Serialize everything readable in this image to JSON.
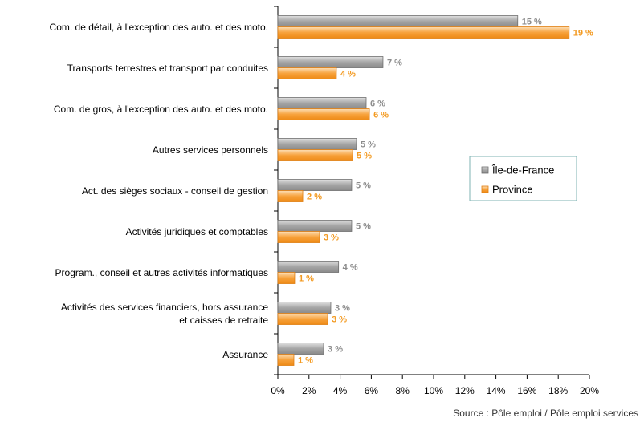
{
  "chart_data": {
    "type": "bar",
    "orientation": "horizontal",
    "categories": [
      "Com. de détail, à l'exception des auto. et des moto.",
      "Transports terrestres et transport par conduites",
      "Com. de gros, à l'exception des auto. et des moto.",
      "Autres services personnels",
      "Act. des sièges sociaux -  conseil de gestion",
      "Activités juridiques et comptables",
      "Program., conseil et autres activités informatiques",
      "Activités des services financiers, hors assurance\net caisses de retraite",
      "Assurance"
    ],
    "series": [
      {
        "name": "Île-de-France",
        "color": "#a6a6a6",
        "values": [
          15.4,
          6.75,
          5.67,
          5.05,
          4.74,
          4.74,
          3.9,
          3.4,
          2.94
        ],
        "value_labels": [
          "15 %",
          "7 %",
          "6 %",
          "5 %",
          "5 %",
          "5 %",
          "4 %",
          "3 %",
          "3 %"
        ],
        "label_color": "#8c8c8c"
      },
      {
        "name": "Province",
        "color": "#f7a23c",
        "values": [
          18.7,
          3.76,
          5.88,
          4.8,
          1.6,
          2.68,
          1.08,
          3.2,
          1.03
        ],
        "value_labels": [
          "19 %",
          "4 %",
          "6 %",
          "5 %",
          "2 %",
          "3 %",
          "1 %",
          "3 %",
          "1 %"
        ],
        "label_color": "#f39a21"
      }
    ],
    "xlim": [
      0,
      20
    ],
    "xticks": [
      {
        "value": 0,
        "label": "0%"
      },
      {
        "value": 2,
        "label": "2%"
      },
      {
        "value": 4,
        "label": "4%"
      },
      {
        "value": 6,
        "label": "6%"
      },
      {
        "value": 8,
        "label": "8%"
      },
      {
        "value": 10,
        "label": "10%"
      },
      {
        "value": 12,
        "label": "12%"
      },
      {
        "value": 14,
        "label": "14%"
      },
      {
        "value": 16,
        "label": "16%"
      },
      {
        "value": 18,
        "label": "18%"
      },
      {
        "value": 20,
        "label": "20%"
      }
    ],
    "source": "Source : Pôle emploi / Pôle emploi services"
  }
}
